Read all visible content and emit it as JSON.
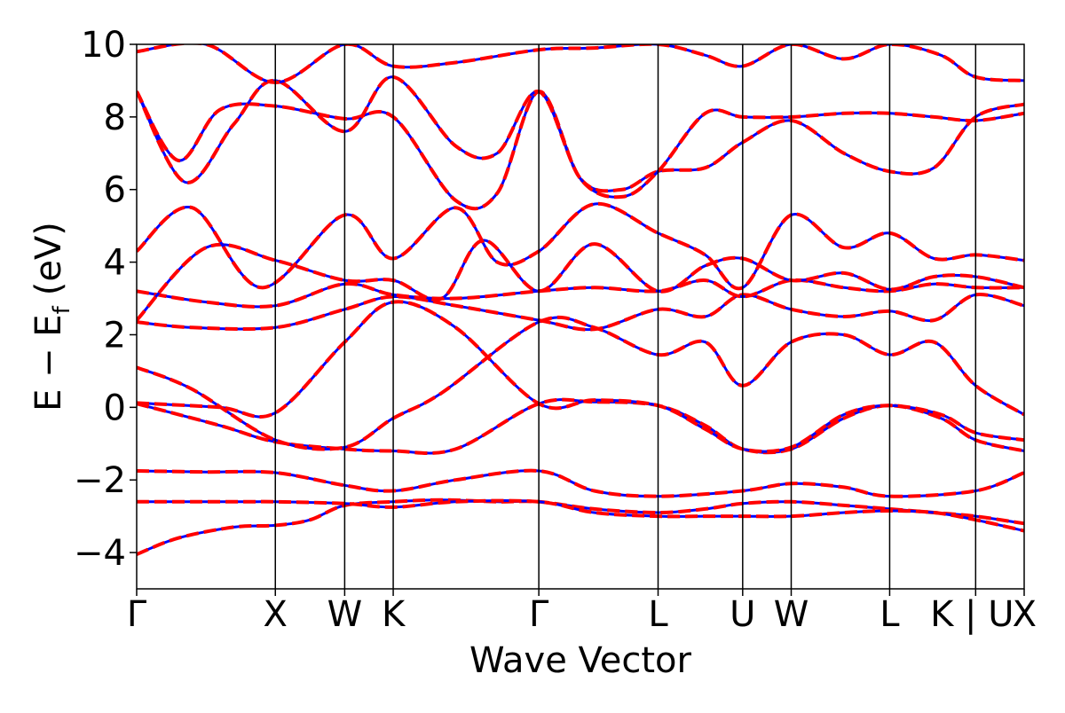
{
  "chart_data": {
    "type": "line",
    "title": "",
    "xlabel": "Wave Vector",
    "ylabel": "E − E",
    "ylabel_subscript": "f",
    "ylabel_unit": "(eV)",
    "ylim": [
      -5,
      10
    ],
    "yticks": [
      10,
      8,
      6,
      4,
      2,
      0,
      -2,
      -4
    ],
    "ytick_labels": [
      "10",
      "8",
      "6",
      "4",
      "2",
      "0",
      "−2",
      "−4"
    ],
    "kpath_positions": [
      0,
      1,
      1.5,
      1.85,
      2.9,
      3.76,
      4.37,
      4.72,
      5.43,
      6.05,
      6.4
    ],
    "kpath_labels": [
      "Γ",
      "X",
      "W",
      "K",
      "Γ",
      "L",
      "U",
      "W",
      "L",
      "K | U",
      "X"
    ],
    "xlim": [
      0,
      6.4
    ],
    "grid": false,
    "colors": {
      "primary": "#ff0000",
      "secondary": "#0000ff",
      "vline": "#000000"
    },
    "series": [
      {
        "x": [
          0,
          0.3,
          0.7,
          1.0,
          1.25,
          1.5,
          1.85,
          2.2,
          2.6,
          2.9,
          3.3,
          3.76,
          4.1,
          4.37,
          4.72,
          5.1,
          5.43,
          5.75,
          6.05,
          6.4
        ],
        "values": [
          -4.05,
          -3.6,
          -3.3,
          -3.25,
          -3.1,
          -2.7,
          -2.6,
          -2.55,
          -2.6,
          -2.6,
          -2.8,
          -2.9,
          -2.8,
          -2.65,
          -2.6,
          -2.7,
          -2.8,
          -2.9,
          -3.0,
          -3.2
        ]
      },
      {
        "x": [
          0,
          0.4,
          0.8,
          1.0,
          1.5,
          1.85,
          2.3,
          2.9,
          3.3,
          3.76,
          4.1,
          4.37,
          4.72,
          5.1,
          5.43,
          5.75,
          6.05,
          6.4
        ],
        "values": [
          -2.6,
          -2.6,
          -2.6,
          -2.6,
          -2.65,
          -2.75,
          -2.6,
          -2.6,
          -2.9,
          -3.0,
          -3.0,
          -3.0,
          -3.0,
          -2.9,
          -2.85,
          -2.9,
          -3.1,
          -3.4
        ]
      },
      {
        "x": [
          0,
          0.5,
          1.0,
          1.5,
          1.85,
          2.3,
          2.9,
          3.3,
          3.76,
          4.37,
          4.72,
          5.1,
          5.43,
          6.05,
          6.4
        ],
        "values": [
          -1.75,
          -1.78,
          -1.8,
          -2.15,
          -2.3,
          -2.0,
          -1.75,
          -2.3,
          -2.45,
          -2.3,
          -2.1,
          -2.2,
          -2.45,
          -2.3,
          -1.8
        ]
      },
      {
        "x": [
          0,
          0.6,
          1.0,
          1.5,
          1.85,
          2.3,
          2.9,
          3.3,
          3.76,
          4.1,
          4.37,
          4.72,
          5.1,
          5.43,
          5.8,
          6.05,
          6.4
        ],
        "values": [
          0.1,
          -0.5,
          -0.95,
          -1.15,
          -1.2,
          -1.15,
          0.1,
          0.15,
          0.05,
          -0.5,
          -1.15,
          -1.15,
          -0.3,
          0.05,
          -0.3,
          -0.9,
          -1.2
        ]
      },
      {
        "x": [
          0,
          0.6,
          1.0,
          1.5,
          1.85,
          2.3,
          2.9,
          3.3,
          3.76,
          4.1,
          4.37,
          4.72,
          5.1,
          5.43,
          5.8,
          6.05,
          6.4
        ],
        "values": [
          0.12,
          0.0,
          -0.15,
          1.8,
          2.9,
          2.2,
          0.1,
          0.2,
          0.05,
          -0.6,
          -1.15,
          -1.1,
          -0.2,
          0.05,
          -0.2,
          -0.7,
          -0.9
        ]
      },
      {
        "x": [
          0,
          0.4,
          1.0,
          1.5,
          1.85,
          2.2,
          2.9,
          3.3,
          3.76,
          4.1,
          4.37,
          4.72,
          5.1,
          5.43,
          5.75,
          6.05,
          6.4
        ],
        "values": [
          1.1,
          0.5,
          -0.9,
          -1.1,
          -0.3,
          0.4,
          2.35,
          2.2,
          1.45,
          1.8,
          0.6,
          1.8,
          2.0,
          1.45,
          1.8,
          0.6,
          -0.2
        ]
      },
      {
        "x": [
          0,
          0.4,
          1.0,
          1.5,
          1.85,
          2.3,
          2.9,
          3.3,
          3.76,
          4.1,
          4.37,
          4.72,
          5.1,
          5.43,
          5.75,
          6.05,
          6.4
        ],
        "values": [
          2.35,
          2.2,
          2.2,
          2.7,
          3.05,
          2.8,
          2.4,
          2.15,
          2.7,
          2.5,
          3.1,
          2.7,
          2.5,
          2.65,
          2.4,
          3.1,
          2.8
        ]
      },
      {
        "x": [
          0,
          0.5,
          1.0,
          1.5,
          1.85,
          2.3,
          2.9,
          3.3,
          3.76,
          4.1,
          4.37,
          4.72,
          5.1,
          5.43,
          5.75,
          6.05,
          6.4
        ],
        "values": [
          3.2,
          2.9,
          2.8,
          3.4,
          3.1,
          3.0,
          3.2,
          3.3,
          3.2,
          3.5,
          3.05,
          3.5,
          3.3,
          3.2,
          3.4,
          3.3,
          3.3
        ]
      },
      {
        "x": [
          0,
          0.5,
          1.0,
          1.5,
          1.85,
          2.2,
          2.5,
          2.9,
          3.3,
          3.76,
          4.1,
          4.37,
          4.72,
          5.1,
          5.43,
          5.75,
          6.05,
          6.4
        ],
        "values": [
          2.4,
          4.4,
          4.05,
          3.5,
          3.5,
          3.0,
          4.6,
          3.2,
          4.5,
          3.2,
          3.9,
          4.1,
          3.5,
          3.7,
          3.25,
          3.6,
          3.6,
          3.3
        ]
      },
      {
        "x": [
          0,
          0.4,
          0.9,
          1.5,
          1.85,
          2.3,
          2.6,
          2.9,
          3.3,
          3.76,
          4.1,
          4.37,
          4.72,
          5.1,
          5.43,
          5.75,
          6.05,
          6.4
        ],
        "values": [
          4.3,
          5.5,
          3.3,
          5.3,
          4.1,
          5.5,
          4.0,
          4.3,
          5.6,
          4.8,
          4.2,
          3.3,
          5.3,
          4.4,
          4.8,
          4.1,
          4.2,
          4.05
        ]
      },
      {
        "x": [
          0,
          0.3,
          0.6,
          1.0,
          1.5,
          1.85,
          2.3,
          2.6,
          2.9,
          3.2,
          3.5,
          3.76,
          4.1,
          4.37,
          4.72,
          5.1,
          5.43,
          5.75,
          6.05,
          6.4
        ],
        "values": [
          8.7,
          6.8,
          8.2,
          8.3,
          7.95,
          8.0,
          5.7,
          5.9,
          8.7,
          6.3,
          6.0,
          6.5,
          6.6,
          7.3,
          7.9,
          7.0,
          6.5,
          6.6,
          8.0,
          8.35
        ]
      },
      {
        "x": [
          0,
          0.35,
          0.7,
          1.0,
          1.5,
          1.85,
          2.3,
          2.6,
          2.9,
          3.2,
          3.5,
          3.76,
          4.1,
          4.37,
          4.72,
          5.1,
          5.43,
          5.75,
          6.05,
          6.4
        ],
        "values": [
          8.7,
          6.2,
          7.8,
          9.0,
          7.6,
          9.1,
          7.2,
          7.0,
          8.7,
          6.3,
          5.8,
          6.5,
          8.1,
          8.0,
          8.0,
          8.1,
          8.1,
          8.0,
          7.9,
          8.1
        ]
      },
      {
        "x": [
          0,
          0.5,
          1.0,
          1.5,
          1.85,
          2.3,
          2.9,
          3.3,
          3.76,
          4.1,
          4.37,
          4.72,
          5.1,
          5.43,
          5.8,
          6.05,
          6.4
        ],
        "values": [
          9.8,
          10.0,
          8.95,
          10.0,
          9.4,
          9.5,
          9.85,
          9.9,
          10.0,
          9.7,
          9.4,
          10.0,
          9.6,
          10.0,
          9.7,
          9.1,
          9.0
        ]
      }
    ]
  }
}
